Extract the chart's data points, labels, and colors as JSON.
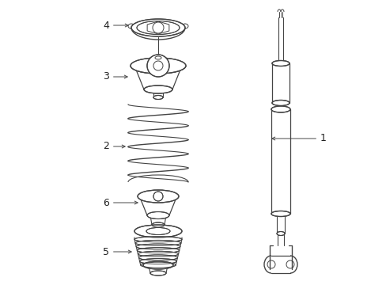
{
  "background_color": "#ffffff",
  "line_color": "#444444",
  "label_color": "#222222",
  "figure_width": 4.89,
  "figure_height": 3.6,
  "dpi": 100
}
